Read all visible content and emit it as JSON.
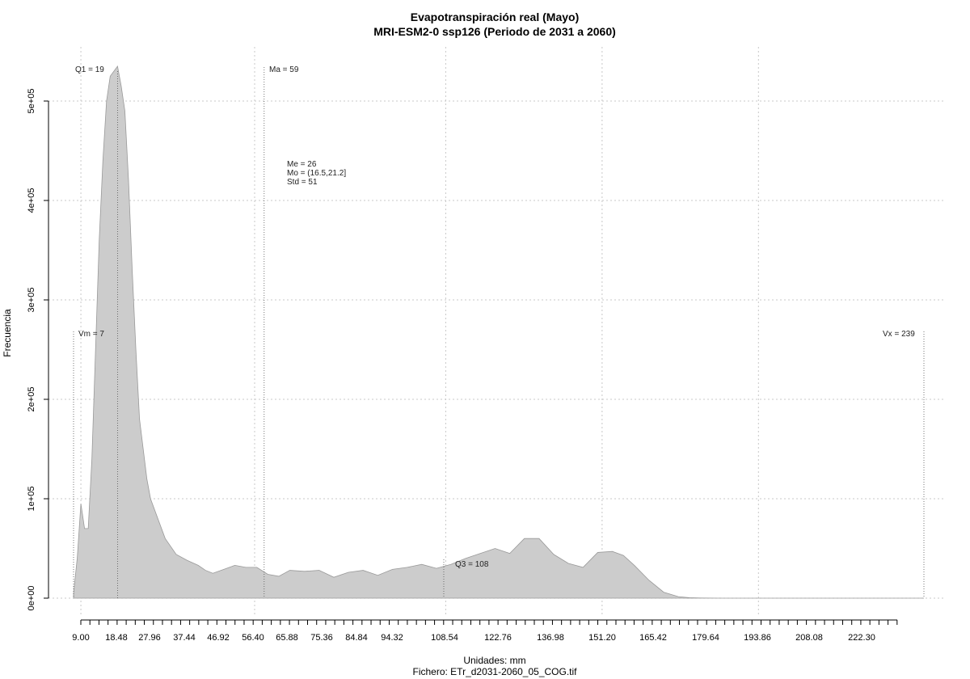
{
  "chart_data": {
    "type": "area",
    "title": "Evapotranspiración real (Mayo)",
    "subtitle": "MRI-ESM2-0 ssp126 (Periodo de 2031 a 2060)",
    "xlabel": "Unidades: mm",
    "ylabel": "Frecuencia",
    "footer": "Fichero: ETr_d2031-2060_05_COG.tif",
    "xlim": [
      7,
      239
    ],
    "ylim": [
      0,
      500000
    ],
    "grid": true,
    "x_tick_labels": [
      "9.00",
      "18.48",
      "27.96",
      "37.44",
      "46.92",
      "56.40",
      "65.88",
      "75.36",
      "84.84",
      "94.32",
      "108.54",
      "122.76",
      "136.98",
      "151.20",
      "165.42",
      "179.64",
      "193.86",
      "208.08",
      "222.30"
    ],
    "y_tick_labels": [
      "0e+00",
      "1e+05",
      "2e+05",
      "3e+05",
      "4e+05",
      "5e+05"
    ],
    "annotations": {
      "q1": "Q1 = 19",
      "ma": "Ma = 59",
      "stats": [
        "Me = 26",
        "Mo = (16.5,21.2]",
        "Std = 51"
      ],
      "vm": "Vm = 7",
      "vx": "Vx = 239",
      "q3": "Q3 = 108"
    },
    "markers": {
      "vm": 7,
      "q1": 19,
      "ma": 59,
      "q3": 108,
      "vx": 239
    },
    "series": [
      {
        "x": [
          7,
          8,
          9,
          10,
          11,
          12,
          13,
          14,
          15,
          16,
          17,
          18,
          19,
          20,
          21,
          22,
          23,
          24,
          25,
          26,
          27,
          28,
          30,
          32,
          35,
          38,
          41,
          43,
          45,
          48,
          51,
          54,
          57,
          60,
          63,
          66,
          70,
          74,
          78,
          82,
          86,
          90,
          94,
          98,
          102,
          106,
          110,
          114,
          118,
          122,
          126,
          130,
          134,
          138,
          142,
          146,
          150,
          154,
          157,
          160,
          164,
          168,
          172,
          175,
          178,
          181,
          184,
          190,
          200,
          215,
          230,
          239
        ],
        "y": [
          5000,
          40000,
          95000,
          70000,
          70000,
          140000,
          250000,
          360000,
          440000,
          500000,
          525000,
          530000,
          535000,
          515000,
          490000,
          420000,
          330000,
          250000,
          180000,
          150000,
          120000,
          100000,
          80000,
          60000,
          44000,
          38000,
          33000,
          28000,
          25000,
          29000,
          33000,
          31000,
          31000,
          24000,
          22000,
          28000,
          27000,
          28000,
          21000,
          26000,
          28000,
          23000,
          29000,
          31000,
          34000,
          30000,
          34000,
          40000,
          45000,
          50000,
          45000,
          60000,
          60000,
          44000,
          35000,
          31000,
          46000,
          47000,
          43000,
          33000,
          18000,
          6000,
          1500,
          500,
          200,
          100,
          0,
          0,
          0,
          0,
          0,
          0
        ]
      }
    ]
  }
}
